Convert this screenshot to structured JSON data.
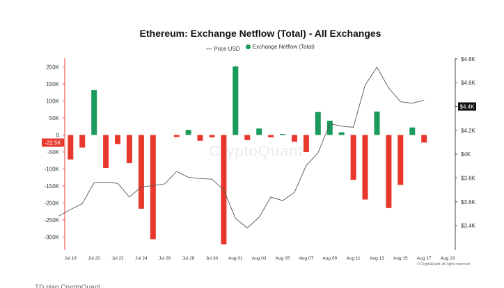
{
  "title": "Ethereum: Exchange Netflow (Total) - All Exchanges",
  "watermark": "CryptoQuant",
  "copyright": "© CryptoQuant. All rights reserved",
  "bottom_overlay_text": "TD Han CryptoQuant",
  "colors": {
    "positive": "#1a9a5b",
    "negative": "#e8372c",
    "price": "#555555",
    "axis_line_left": "#e8372c"
  },
  "chart_data": {
    "type": "bar",
    "title": "Ethereum: Exchange Netflow (Total) - All Exchanges",
    "legend": [
      "Price USD",
      "Exchange Netflow (Total)"
    ],
    "legend_placement": "top-center",
    "x_tick_labels": [
      "Jul 18",
      "Jul 20",
      "Jul 22",
      "Jul 24",
      "Jul 26",
      "Jul 28",
      "Jul 30",
      "Aug 01",
      "Aug 03",
      "Aug 05",
      "Aug 07",
      "Aug 09",
      "Aug 11",
      "Aug 13",
      "Aug 15",
      "Aug 17",
      "Aug 19"
    ],
    "y_left": {
      "ticks": [
        200000,
        150000,
        100000,
        50000,
        0,
        -50000,
        -100000,
        -150000,
        -200000,
        -250000,
        -300000
      ],
      "tick_labels": [
        "200K",
        "150K",
        "100K",
        "50K",
        "0",
        "-50K",
        "-100K",
        "-150K",
        "-200K",
        "-250K",
        "-300K"
      ],
      "range": [
        -325000,
        230000
      ]
    },
    "y_right": {
      "ticks": [
        4800,
        4600,
        4400,
        4200,
        4000,
        3800,
        3600,
        3400
      ],
      "tick_labels": [
        "$4.8K",
        "$4.6K",
        "$4.4K",
        "$4.2K",
        "$4K",
        "$3.8K",
        "$3.6K",
        "$3.4K"
      ],
      "range": [
        3400,
        4800
      ]
    },
    "current_netflow_label": "-22.5K",
    "current_price_label": "$4.4K",
    "grid": false,
    "netflow": [
      {
        "date": "Jul 18",
        "value": -72000
      },
      {
        "date": "Jul 19",
        "value": -37000
      },
      {
        "date": "Jul 20",
        "value": 132000
      },
      {
        "date": "Jul 21",
        "value": -97000
      },
      {
        "date": "Jul 22",
        "value": -27000
      },
      {
        "date": "Jul 23",
        "value": -83000
      },
      {
        "date": "Jul 24",
        "value": -217000
      },
      {
        "date": "Jul 25",
        "value": -307000
      },
      {
        "date": "Jul 26",
        "value": 0
      },
      {
        "date": "Jul 27",
        "value": -6000
      },
      {
        "date": "Jul 28",
        "value": 15000
      },
      {
        "date": "Jul 29",
        "value": -17000
      },
      {
        "date": "Jul 30",
        "value": -7000
      },
      {
        "date": "Jul 31",
        "value": -322000
      },
      {
        "date": "Aug 01",
        "value": 202000
      },
      {
        "date": "Aug 02",
        "value": -15000
      },
      {
        "date": "Aug 03",
        "value": 19000
      },
      {
        "date": "Aug 04",
        "value": -7000
      },
      {
        "date": "Aug 05",
        "value": 3000
      },
      {
        "date": "Aug 06",
        "value": -20000
      },
      {
        "date": "Aug 07",
        "value": -50000
      },
      {
        "date": "Aug 08",
        "value": 68000
      },
      {
        "date": "Aug 09",
        "value": 42000
      },
      {
        "date": "Aug 10",
        "value": 8000
      },
      {
        "date": "Aug 11",
        "value": -132000
      },
      {
        "date": "Aug 12",
        "value": -190000
      },
      {
        "date": "Aug 13",
        "value": 69000
      },
      {
        "date": "Aug 14",
        "value": -215000
      },
      {
        "date": "Aug 15",
        "value": -147000
      },
      {
        "date": "Aug 16",
        "value": 22000
      },
      {
        "date": "Aug 17",
        "value": -22500
      }
    ],
    "price": [
      {
        "date": "Jul 17",
        "value": 3480
      },
      {
        "date": "Jul 18",
        "value": 3535
      },
      {
        "date": "Jul 19",
        "value": 3585
      },
      {
        "date": "Jul 20",
        "value": 3760
      },
      {
        "date": "Jul 21",
        "value": 3765
      },
      {
        "date": "Jul 22",
        "value": 3755
      },
      {
        "date": "Jul 23",
        "value": 3640
      },
      {
        "date": "Jul 24",
        "value": 3725
      },
      {
        "date": "Jul 25",
        "value": 3735
      },
      {
        "date": "Jul 26",
        "value": 3750
      },
      {
        "date": "Jul 27",
        "value": 3855
      },
      {
        "date": "Jul 28",
        "value": 3805
      },
      {
        "date": "Jul 29",
        "value": 3795
      },
      {
        "date": "Jul 30",
        "value": 3790
      },
      {
        "date": "Jul 31",
        "value": 3700
      },
      {
        "date": "Aug 01",
        "value": 3460
      },
      {
        "date": "Aug 02",
        "value": 3380
      },
      {
        "date": "Aug 03",
        "value": 3470
      },
      {
        "date": "Aug 04",
        "value": 3640
      },
      {
        "date": "Aug 05",
        "value": 3610
      },
      {
        "date": "Aug 06",
        "value": 3680
      },
      {
        "date": "Aug 07",
        "value": 3905
      },
      {
        "date": "Aug 08",
        "value": 4010
      },
      {
        "date": "Aug 09",
        "value": 4255
      },
      {
        "date": "Aug 10",
        "value": 4235
      },
      {
        "date": "Aug 11",
        "value": 4225
      },
      {
        "date": "Aug 12",
        "value": 4580
      },
      {
        "date": "Aug 13",
        "value": 4730
      },
      {
        "date": "Aug 14",
        "value": 4555
      },
      {
        "date": "Aug 15",
        "value": 4440
      },
      {
        "date": "Aug 16",
        "value": 4428
      },
      {
        "date": "Aug 17",
        "value": 4453
      }
    ]
  }
}
